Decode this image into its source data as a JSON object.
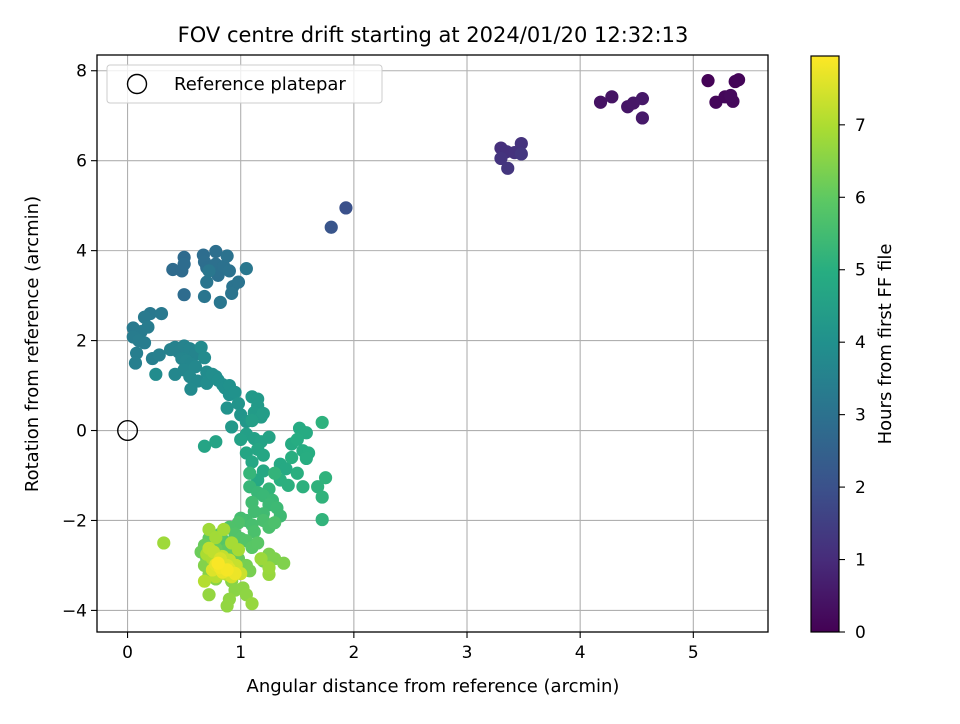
{
  "chart_data": {
    "type": "scatter",
    "title": "FOV centre drift starting at 2024/01/20 12:32:13",
    "xlabel": "Angular distance from reference (arcmin)",
    "ylabel": "Rotation from reference (arcmin)",
    "xlim": [
      -0.27,
      5.66
    ],
    "ylim": [
      -4.48,
      8.35
    ],
    "xticks": [
      0,
      1,
      2,
      3,
      4,
      5
    ],
    "xtick_labels": [
      "0",
      "1",
      "2",
      "3",
      "4",
      "5"
    ],
    "yticks": [
      -4,
      -2,
      0,
      2,
      4,
      6,
      8
    ],
    "ytick_labels": [
      "−4",
      "−2",
      "0",
      "2",
      "4",
      "6",
      "8"
    ],
    "grid": true,
    "legend": {
      "location": "upper-left",
      "entries": [
        "Reference platepar"
      ]
    },
    "colormap": "viridis",
    "colorbar": {
      "label": "Hours from first FF file",
      "range": [
        0,
        7.95
      ],
      "ticks": [
        0,
        1,
        2,
        3,
        4,
        5,
        6,
        7
      ],
      "tick_labels": [
        "0",
        "1",
        "2",
        "3",
        "4",
        "5",
        "6",
        "7"
      ]
    },
    "reference_point": {
      "name": "Reference platepar",
      "x": 0,
      "y": 0,
      "style": "hollow-circle"
    },
    "points": [
      [
        5.13,
        7.78,
        0.05
      ],
      [
        5.37,
        7.76,
        0.08
      ],
      [
        5.4,
        7.8,
        0.1
      ],
      [
        5.2,
        7.3,
        0.13
      ],
      [
        5.28,
        7.42,
        0.15
      ],
      [
        5.35,
        7.32,
        0.18
      ],
      [
        5.33,
        7.45,
        0.2
      ],
      [
        4.18,
        7.3,
        0.4
      ],
      [
        4.28,
        7.42,
        0.43
      ],
      [
        4.42,
        7.2,
        0.46
      ],
      [
        4.47,
        7.28,
        0.5
      ],
      [
        4.55,
        7.38,
        0.53
      ],
      [
        4.55,
        6.95,
        0.56
      ],
      [
        3.3,
        6.28,
        1.1
      ],
      [
        3.35,
        6.2,
        1.13
      ],
      [
        3.42,
        6.18,
        1.16
      ],
      [
        3.48,
        6.38,
        1.19
      ],
      [
        3.3,
        6.05,
        1.22
      ],
      [
        3.36,
        5.83,
        1.25
      ],
      [
        3.48,
        6.15,
        1.28
      ],
      [
        1.93,
        4.95,
        2.0
      ],
      [
        1.8,
        4.52,
        2.1
      ],
      [
        0.5,
        3.85,
        2.75
      ],
      [
        0.4,
        3.58,
        2.78
      ],
      [
        0.48,
        3.55,
        2.8
      ],
      [
        0.5,
        3.7,
        2.82
      ],
      [
        0.5,
        3.02,
        2.84
      ],
      [
        0.67,
        3.9,
        2.86
      ],
      [
        0.68,
        3.75,
        2.88
      ],
      [
        0.7,
        3.62,
        2.9
      ],
      [
        0.78,
        3.98,
        2.92
      ],
      [
        0.78,
        3.7,
        2.94
      ],
      [
        0.8,
        3.45,
        2.96
      ],
      [
        0.85,
        3.65,
        2.98
      ],
      [
        0.88,
        3.88,
        3.0
      ],
      [
        0.9,
        3.55,
        3.02
      ],
      [
        0.93,
        3.2,
        3.04
      ],
      [
        0.98,
        3.3,
        3.06
      ],
      [
        0.92,
        3.05,
        3.08
      ],
      [
        0.7,
        3.3,
        3.1
      ],
      [
        0.68,
        2.98,
        3.12
      ],
      [
        0.82,
        2.85,
        3.14
      ],
      [
        1.05,
        3.6,
        3.16
      ],
      [
        0.72,
        3.55,
        3.18
      ],
      [
        0.2,
        2.6,
        3.22
      ],
      [
        0.3,
        2.6,
        3.24
      ],
      [
        0.15,
        2.52,
        3.26
      ],
      [
        0.05,
        2.28,
        3.28
      ],
      [
        0.12,
        2.2,
        3.3
      ],
      [
        0.18,
        2.3,
        3.32
      ],
      [
        0.05,
        2.08,
        3.34
      ],
      [
        0.1,
        2.0,
        3.36
      ],
      [
        0.15,
        1.95,
        3.38
      ],
      [
        0.08,
        1.72,
        3.4
      ],
      [
        0.07,
        1.5,
        3.42
      ],
      [
        0.22,
        1.6,
        3.44
      ],
      [
        0.28,
        1.68,
        3.46
      ],
      [
        0.42,
        1.85,
        3.5
      ],
      [
        0.38,
        1.8,
        3.52
      ],
      [
        0.45,
        1.75,
        3.54
      ],
      [
        0.5,
        1.88,
        3.56
      ],
      [
        0.55,
        1.82,
        3.58
      ],
      [
        0.6,
        1.7,
        3.6
      ],
      [
        0.48,
        1.6,
        3.62
      ],
      [
        0.52,
        1.55,
        3.64
      ],
      [
        0.56,
        1.48,
        3.66
      ],
      [
        0.42,
        1.25,
        3.68
      ],
      [
        0.5,
        1.35,
        3.7
      ],
      [
        0.6,
        1.42,
        3.72
      ],
      [
        0.55,
        1.2,
        3.74
      ],
      [
        0.62,
        1.1,
        3.76
      ],
      [
        0.56,
        0.92,
        3.78
      ],
      [
        0.65,
        1.85,
        3.8
      ],
      [
        0.68,
        1.62,
        3.82
      ],
      [
        0.7,
        1.3,
        3.84
      ],
      [
        0.25,
        1.25,
        3.86
      ],
      [
        0.7,
        1.05,
        3.88
      ],
      [
        0.75,
        1.25,
        3.9
      ],
      [
        0.78,
        1.2,
        3.92
      ],
      [
        0.8,
        1.12,
        3.94
      ],
      [
        0.84,
        1.02,
        3.96
      ],
      [
        0.86,
        0.95,
        3.98
      ],
      [
        0.9,
        0.8,
        4.0
      ],
      [
        0.9,
        1.0,
        4.02
      ],
      [
        0.95,
        0.85,
        4.04
      ],
      [
        0.88,
        0.5,
        4.08
      ],
      [
        0.98,
        0.6,
        4.12
      ],
      [
        1.0,
        0.35,
        4.16
      ],
      [
        1.05,
        0.2,
        4.2
      ],
      [
        0.92,
        0.08,
        4.25
      ],
      [
        1.1,
        0.75,
        4.28
      ],
      [
        1.15,
        0.7,
        4.3
      ],
      [
        1.15,
        0.55,
        4.33
      ],
      [
        1.12,
        0.4,
        4.36
      ],
      [
        1.18,
        0.3,
        4.4
      ],
      [
        1.2,
        0.38,
        4.42
      ],
      [
        1.1,
        0.22,
        4.45
      ],
      [
        1.05,
        -0.08,
        4.5
      ],
      [
        1.12,
        -0.18,
        4.52
      ],
      [
        1.0,
        -0.2,
        4.55
      ],
      [
        1.18,
        -0.25,
        4.58
      ],
      [
        1.25,
        -0.15,
        4.6
      ],
      [
        0.78,
        -0.25,
        4.62
      ],
      [
        0.68,
        -0.35,
        4.65
      ],
      [
        1.05,
        -0.5,
        4.68
      ],
      [
        1.15,
        -0.42,
        4.7
      ],
      [
        1.2,
        -0.55,
        4.72
      ],
      [
        1.1,
        -0.7,
        4.75
      ],
      [
        1.2,
        -0.9,
        4.78
      ],
      [
        1.15,
        -1.1,
        4.8
      ],
      [
        1.35,
        -0.75,
        4.82
      ],
      [
        1.4,
        -0.85,
        4.84
      ],
      [
        1.45,
        -0.3,
        4.86
      ],
      [
        1.52,
        0.05,
        4.88
      ],
      [
        1.58,
        -0.05,
        4.9
      ],
      [
        1.5,
        -0.2,
        4.92
      ],
      [
        1.55,
        -0.45,
        4.94
      ],
      [
        1.6,
        -0.5,
        4.96
      ],
      [
        1.58,
        -0.62,
        4.98
      ],
      [
        1.45,
        -0.6,
        5.0
      ],
      [
        1.5,
        -0.95,
        5.02
      ],
      [
        1.35,
        -1.1,
        5.04
      ],
      [
        1.42,
        -1.22,
        5.06
      ],
      [
        1.55,
        -1.25,
        5.08
      ],
      [
        1.72,
        0.18,
        5.1
      ],
      [
        1.68,
        -1.25,
        5.12
      ],
      [
        1.75,
        -1.05,
        5.14
      ],
      [
        1.72,
        -1.48,
        5.16
      ],
      [
        1.72,
        -1.98,
        5.18
      ],
      [
        1.3,
        -0.95,
        5.2
      ],
      [
        1.25,
        -1.3,
        5.22
      ],
      [
        1.08,
        -0.95,
        5.25
      ],
      [
        1.08,
        -1.25,
        5.28
      ],
      [
        1.15,
        -1.38,
        5.3
      ],
      [
        1.2,
        -1.45,
        5.32
      ],
      [
        1.28,
        -1.55,
        5.35
      ],
      [
        1.25,
        -1.65,
        5.38
      ],
      [
        1.32,
        -1.72,
        5.4
      ],
      [
        1.35,
        -1.9,
        5.42
      ],
      [
        1.2,
        -1.85,
        5.45
      ],
      [
        1.1,
        -1.6,
        5.48
      ],
      [
        1.12,
        -1.8,
        5.5
      ],
      [
        1.05,
        -2.0,
        5.52
      ],
      [
        1.0,
        -1.95,
        5.55
      ],
      [
        1.1,
        -2.1,
        5.58
      ],
      [
        1.2,
        -2.0,
        5.6
      ],
      [
        1.25,
        -2.15,
        5.62
      ],
      [
        1.12,
        -2.25,
        5.65
      ],
      [
        1.3,
        -2.05,
        5.68
      ],
      [
        0.98,
        -2.05,
        5.7
      ],
      [
        0.9,
        -2.15,
        5.72
      ],
      [
        0.95,
        -2.3,
        5.75
      ],
      [
        1.0,
        -2.4,
        5.78
      ],
      [
        1.05,
        -2.45,
        5.8
      ],
      [
        0.95,
        -2.55,
        5.82
      ],
      [
        0.85,
        -2.45,
        5.85
      ],
      [
        1.1,
        -2.6,
        5.88
      ],
      [
        1.15,
        -2.5,
        5.9
      ],
      [
        0.82,
        -2.3,
        5.92
      ],
      [
        0.75,
        -2.55,
        5.95
      ],
      [
        0.88,
        -2.65,
        5.98
      ],
      [
        0.72,
        -2.4,
        6.0
      ],
      [
        0.92,
        -2.75,
        6.05
      ],
      [
        0.98,
        -2.85,
        6.08
      ],
      [
        0.78,
        -2.62,
        6.1
      ],
      [
        0.68,
        -2.55,
        6.12
      ],
      [
        0.65,
        -2.7,
        6.15
      ],
      [
        0.7,
        -2.85,
        6.18
      ],
      [
        0.75,
        -2.95,
        6.2
      ],
      [
        0.85,
        -2.9,
        6.22
      ],
      [
        0.82,
        -3.1,
        6.25
      ],
      [
        0.9,
        -3.05,
        6.28
      ],
      [
        1.05,
        -3.0,
        6.3
      ],
      [
        1.08,
        -3.12,
        6.32
      ],
      [
        1.2,
        -2.9,
        6.35
      ],
      [
        1.25,
        -2.75,
        6.38
      ],
      [
        1.3,
        -2.85,
        6.4
      ],
      [
        1.38,
        -2.95,
        6.42
      ],
      [
        0.68,
        -3.0,
        6.45
      ],
      [
        0.72,
        -3.2,
        6.48
      ],
      [
        0.78,
        -3.3,
        6.5
      ],
      [
        0.92,
        -3.35,
        6.52
      ],
      [
        0.95,
        -3.55,
        6.55
      ],
      [
        1.02,
        -3.5,
        6.58
      ],
      [
        1.05,
        -3.65,
        6.6
      ],
      [
        0.9,
        -3.75,
        6.62
      ],
      [
        0.88,
        -3.9,
        6.65
      ],
      [
        0.72,
        -3.65,
        6.68
      ],
      [
        1.1,
        -3.85,
        6.7
      ],
      [
        1.25,
        -3.2,
        6.72
      ],
      [
        1.25,
        -3.05,
        6.75
      ],
      [
        1.18,
        -2.85,
        6.78
      ],
      [
        0.32,
        -2.5,
        6.8
      ],
      [
        0.72,
        -2.2,
        6.82
      ],
      [
        0.78,
        -2.38,
        6.85
      ],
      [
        0.85,
        -2.2,
        6.88
      ],
      [
        0.92,
        -2.5,
        6.9
      ],
      [
        0.98,
        -2.65,
        6.92
      ],
      [
        0.7,
        -2.75,
        6.95
      ],
      [
        0.75,
        -2.85,
        6.98
      ],
      [
        0.8,
        -2.95,
        7.0
      ],
      [
        0.85,
        -3.0,
        7.02
      ],
      [
        0.9,
        -2.95,
        7.05
      ],
      [
        0.68,
        -3.35,
        7.08
      ],
      [
        0.78,
        -3.25,
        7.1
      ],
      [
        0.82,
        -3.18,
        7.12
      ],
      [
        0.88,
        -3.2,
        7.15
      ],
      [
        0.95,
        -3.1,
        7.18
      ],
      [
        0.72,
        -2.62,
        7.2
      ],
      [
        0.76,
        -2.7,
        7.22
      ],
      [
        0.84,
        -2.8,
        7.25
      ],
      [
        0.9,
        -2.88,
        7.28
      ],
      [
        0.96,
        -3.0,
        7.3
      ],
      [
        1.0,
        -3.18,
        7.35
      ],
      [
        0.8,
        -3.05,
        7.38
      ],
      [
        0.86,
        -3.12,
        7.42
      ],
      [
        0.92,
        -3.25,
        7.45
      ],
      [
        0.82,
        -2.85,
        7.48
      ],
      [
        0.88,
        -3.0,
        7.52
      ],
      [
        0.75,
        -3.1,
        7.55
      ],
      [
        0.9,
        -3.08,
        7.6
      ],
      [
        0.78,
        -2.98,
        7.65
      ],
      [
        0.84,
        -3.15,
        7.7
      ],
      [
        0.95,
        -3.18,
        7.75
      ],
      [
        0.82,
        -3.05,
        7.8
      ],
      [
        0.88,
        -3.1,
        7.85
      ],
      [
        0.8,
        -2.95,
        7.9
      ]
    ]
  }
}
